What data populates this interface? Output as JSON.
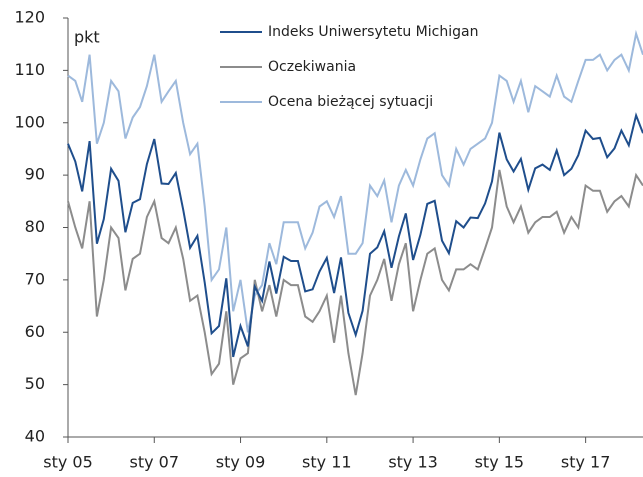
{
  "chart_data": {
    "type": "line",
    "y_unit_label": "pkt",
    "x": [
      2005,
      2005.17,
      2005.33,
      2005.5,
      2005.67,
      2005.83,
      2006,
      2006.17,
      2006.33,
      2006.5,
      2006.67,
      2006.83,
      2007,
      2007.17,
      2007.33,
      2007.5,
      2007.67,
      2007.83,
      2008,
      2008.17,
      2008.33,
      2008.5,
      2008.67,
      2008.83,
      2009,
      2009.17,
      2009.33,
      2009.5,
      2009.67,
      2009.83,
      2010,
      2010.17,
      2010.33,
      2010.5,
      2010.67,
      2010.83,
      2011,
      2011.17,
      2011.33,
      2011.5,
      2011.67,
      2011.83,
      2012,
      2012.17,
      2012.33,
      2012.5,
      2012.67,
      2012.83,
      2013,
      2013.17,
      2013.33,
      2013.5,
      2013.67,
      2013.83,
      2014,
      2014.17,
      2014.33,
      2014.5,
      2014.67,
      2014.83,
      2015,
      2015.17,
      2015.33,
      2015.5,
      2015.67,
      2015.83,
      2016,
      2016.17,
      2016.33,
      2016.5,
      2016.67,
      2016.83,
      2017,
      2017.17,
      2017.33,
      2017.5,
      2017.67,
      2017.83,
      2018,
      2018.17,
      2018.33
    ],
    "series": [
      {
        "name": "Indeks Uniwersytetu Michigan",
        "color": "#1f4e8c",
        "values": [
          96,
          92.6,
          86.9,
          96.5,
          76.9,
          81.6,
          91.2,
          88.9,
          79.1,
          84.7,
          85.4,
          92.1,
          96.9,
          88.4,
          88.3,
          90.4,
          83.4,
          76.1,
          78.4,
          69.5,
          59.8,
          61.2,
          70.3,
          55.3,
          61.2,
          57.3,
          68.7,
          66,
          73.5,
          67.4,
          74.4,
          73.6,
          73.6,
          67.8,
          68.2,
          71.6,
          74.2,
          67.5,
          74.3,
          63.7,
          59.5,
          64.1,
          75,
          76.2,
          79.3,
          72.3,
          78.3,
          82.7,
          73.8,
          78.6,
          84.5,
          85.1,
          77.5,
          75.1,
          81.2,
          80,
          81.9,
          81.8,
          84.6,
          88.8,
          98.1,
          93,
          90.7,
          93.1,
          87.2,
          91.3,
          92,
          91,
          94.7,
          90,
          91.2,
          93.8,
          98.5,
          96.9,
          97.1,
          93.4,
          95.1,
          98.5,
          95.7,
          101.4,
          98
        ]
      },
      {
        "name": "Oczekiwania",
        "color": "#8c8c8c",
        "values": [
          85,
          80,
          76,
          85,
          63,
          70,
          80,
          78,
          68,
          74,
          75,
          82,
          85,
          78,
          77,
          80,
          74,
          66,
          67,
          60,
          52,
          54,
          64,
          50,
          55,
          56,
          70,
          64,
          69,
          63,
          70,
          69,
          69,
          63,
          62,
          64,
          67,
          58,
          67,
          56,
          48,
          56,
          67,
          70,
          74,
          66,
          73,
          77,
          64,
          70,
          75,
          76,
          70,
          68,
          72,
          72,
          73,
          72,
          76,
          80,
          91,
          84,
          81,
          84,
          79,
          81,
          82,
          82,
          83,
          79,
          82,
          80,
          88,
          87,
          87,
          83,
          85,
          86,
          84,
          90,
          88
        ]
      },
      {
        "name": "Ocena bieżącej sytuacji",
        "color": "#9db9dc",
        "values": [
          109,
          108,
          104,
          113,
          96,
          100,
          108,
          106,
          97,
          101,
          103,
          107,
          113,
          104,
          106,
          108,
          100,
          94,
          96,
          84,
          70,
          72,
          80,
          64,
          70,
          60,
          67,
          69,
          77,
          73,
          81,
          81,
          81,
          76,
          79,
          84,
          85,
          82,
          86,
          75,
          75,
          77,
          88,
          86,
          89,
          81,
          88,
          91,
          88,
          93,
          97,
          98,
          90,
          88,
          95,
          92,
          95,
          96,
          97,
          100,
          109,
          108,
          104,
          108,
          102,
          107,
          106,
          105,
          109,
          105,
          104,
          108,
          112,
          112,
          113,
          110,
          112,
          113,
          110,
          117,
          113
        ]
      }
    ],
    "xlim": [
      2005,
      2018.33
    ],
    "xticks": [
      {
        "value": 2005,
        "label": "sty 05"
      },
      {
        "value": 2007,
        "label": "sty 07"
      },
      {
        "value": 2009,
        "label": "sty 09"
      },
      {
        "value": 2011,
        "label": "sty 11"
      },
      {
        "value": 2013,
        "label": "sty 13"
      },
      {
        "value": 2015,
        "label": "sty 15"
      },
      {
        "value": 2017,
        "label": "sty 17"
      }
    ],
    "ylim": [
      40,
      120
    ],
    "yticks": [
      40,
      50,
      60,
      70,
      80,
      90,
      100,
      110,
      120
    ],
    "legend": "top"
  }
}
